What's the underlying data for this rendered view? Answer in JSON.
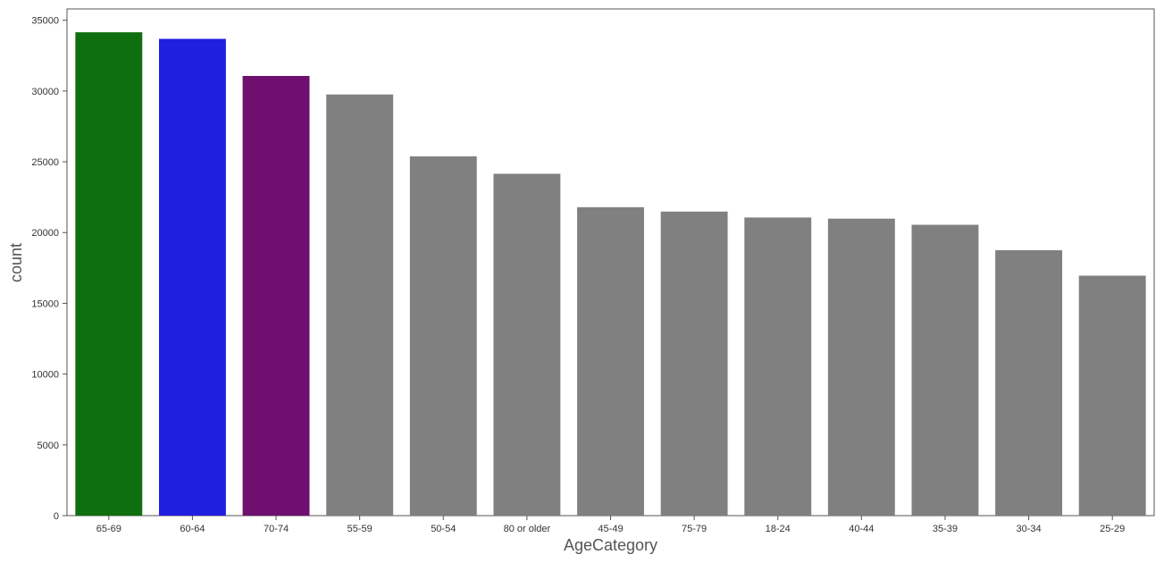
{
  "chart_data": {
    "type": "bar",
    "title": "",
    "xlabel": "AgeCategory",
    "ylabel": "count",
    "ylim": [
      0,
      35800
    ],
    "yticks": [
      0,
      5000,
      10000,
      15000,
      20000,
      25000,
      30000,
      35000
    ],
    "grid": false,
    "legend": "none",
    "categories": [
      "65-69",
      "60-64",
      "70-74",
      "55-59",
      "50-54",
      "80 or older",
      "45-49",
      "75-79",
      "18-24",
      "40-44",
      "35-39",
      "30-34",
      "25-29"
    ],
    "values": [
      34151,
      33686,
      31065,
      29757,
      25382,
      24153,
      21791,
      21482,
      21064,
      20982,
      20550,
      18753,
      16955
    ],
    "colors": [
      "#0f6e0f",
      "#1f1fe0",
      "#6f0f6f",
      "#808080",
      "#808080",
      "#808080",
      "#808080",
      "#808080",
      "#808080",
      "#808080",
      "#808080",
      "#808080",
      "#808080"
    ],
    "frame_color": "#555555"
  }
}
